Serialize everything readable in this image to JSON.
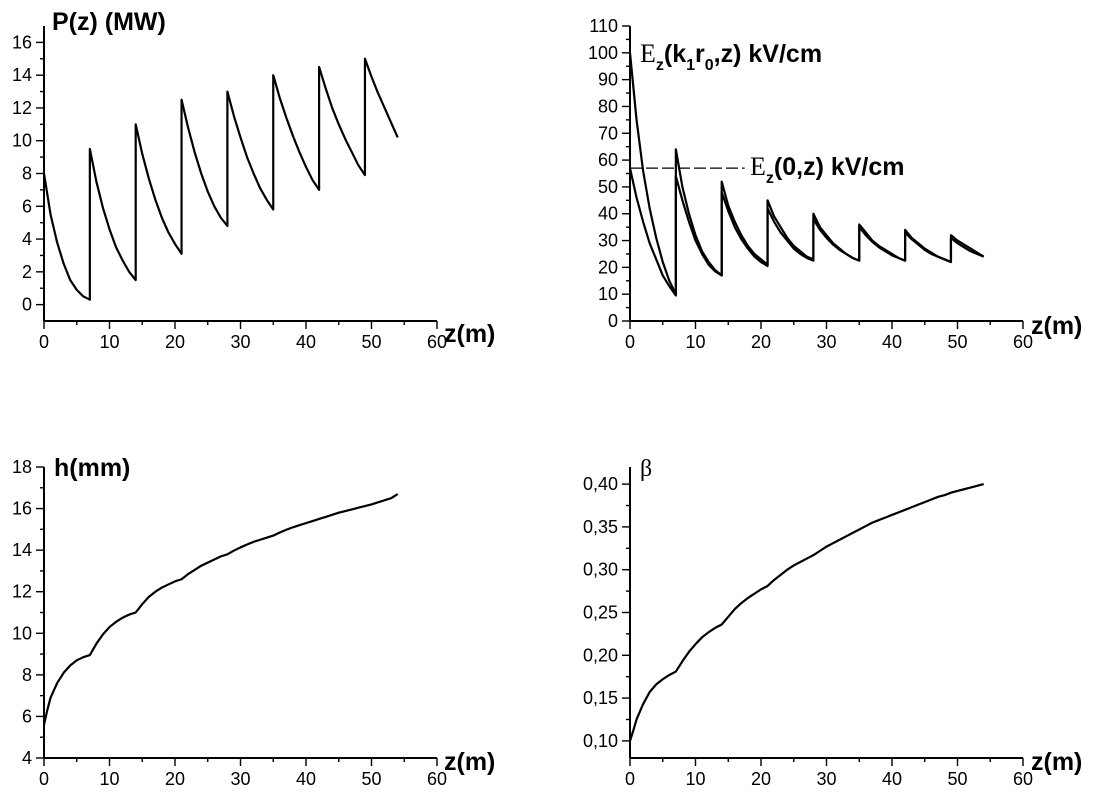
{
  "chart_data": [
    {
      "id": "p",
      "type": "line",
      "ylabel": "P(z) (MW)",
      "xlabel": "z(m)",
      "xlim": [
        0,
        60
      ],
      "ylim": [
        -1,
        17
      ],
      "xticks": [
        0,
        10,
        20,
        30,
        40,
        50,
        60
      ],
      "yticks": [
        0,
        2,
        4,
        6,
        8,
        10,
        12,
        14,
        16
      ],
      "grid": false,
      "series": [
        {
          "x": [
            0,
            1,
            2,
            3,
            4,
            5,
            6,
            7,
            7,
            8,
            9,
            10,
            11,
            12,
            13,
            14,
            14,
            15,
            16,
            17,
            18,
            19,
            20,
            21,
            21,
            22,
            23,
            24,
            25,
            26,
            27,
            28,
            28,
            29,
            30,
            31,
            32,
            33,
            34,
            35,
            35,
            36,
            37,
            38,
            39,
            40,
            41,
            42,
            42,
            43,
            44,
            45,
            46,
            47,
            48,
            49,
            49,
            50,
            51,
            52,
            53,
            54
          ],
          "values": [
            8.0,
            5.5,
            3.8,
            2.5,
            1.5,
            0.9,
            0.5,
            0.3,
            9.5,
            7.5,
            5.9,
            4.6,
            3.5,
            2.7,
            2.0,
            1.5,
            11.0,
            9.2,
            7.7,
            6.4,
            5.3,
            4.4,
            3.7,
            3.1,
            12.5,
            10.8,
            9.3,
            8.0,
            6.9,
            6.0,
            5.3,
            4.8,
            13.0,
            11.5,
            10.2,
            9.0,
            8.0,
            7.1,
            6.4,
            5.8,
            14.0,
            12.6,
            11.4,
            10.3,
            9.3,
            8.4,
            7.6,
            7.0,
            14.5,
            13.2,
            12.0,
            11.0,
            10.1,
            9.3,
            8.5,
            7.9,
            15.0,
            13.9,
            12.9,
            12.0,
            11.1,
            10.2
          ]
        }
      ]
    },
    {
      "id": "e",
      "type": "line",
      "xlabel": "z(m)",
      "xlim": [
        0,
        60
      ],
      "ylim": [
        0,
        110
      ],
      "xticks": [
        0,
        10,
        20,
        30,
        40,
        50,
        60
      ],
      "yticks": [
        0,
        10,
        20,
        30,
        40,
        50,
        60,
        70,
        80,
        90,
        100,
        110
      ],
      "grid": false,
      "annotations": [
        {
          "id": "ek1",
          "main": "E",
          "sub1": "z",
          "mid1": "(k",
          "sub2": "1",
          "mid2": "r",
          "sub3": "0",
          "tail": ",z) kV/cm"
        },
        {
          "id": "e0",
          "main": "E",
          "sub1": "z",
          "tail": "(0,z) kV/cm"
        }
      ],
      "series": [
        {
          "x": [
            0,
            1,
            2,
            3,
            4,
            5,
            6,
            7,
            7,
            8,
            9,
            10,
            11,
            12,
            13,
            14,
            14,
            15,
            16,
            17,
            18,
            19,
            20,
            21,
            21,
            22,
            23,
            24,
            25,
            26,
            27,
            28,
            28,
            29,
            30,
            31,
            32,
            33,
            34,
            35,
            35,
            36,
            37,
            38,
            39,
            40,
            41,
            42,
            42,
            43,
            44,
            45,
            46,
            47,
            48,
            49,
            49,
            50,
            51,
            52,
            53,
            54
          ],
          "values": [
            100,
            75,
            56,
            42,
            31,
            22,
            15,
            10,
            64,
            50,
            40,
            32,
            26,
            22,
            19,
            17,
            52,
            43,
            37,
            32,
            28,
            25,
            23,
            21,
            45,
            39,
            35,
            31,
            28,
            26,
            24,
            23,
            40,
            35,
            32,
            29,
            27,
            25,
            23.5,
            22.5,
            36,
            33,
            30,
            28,
            26.5,
            25,
            23.5,
            22.5,
            34,
            31,
            29,
            27,
            25.5,
            24,
            23,
            22,
            32,
            30,
            28.5,
            27,
            25.5,
            24
          ]
        },
        {
          "x": [
            0,
            1,
            2,
            3,
            4,
            5,
            6,
            7,
            7,
            8,
            9,
            10,
            11,
            12,
            13,
            14,
            14,
            15,
            16,
            17,
            18,
            19,
            20,
            21,
            21,
            22,
            23,
            24,
            25,
            26,
            27,
            28,
            28,
            29,
            30,
            31,
            32,
            33,
            34,
            35,
            35,
            36,
            37,
            38,
            39,
            40,
            41,
            42,
            42,
            43,
            44,
            45,
            46,
            47,
            48,
            49,
            49,
            50,
            51,
            52,
            53,
            54
          ],
          "values": [
            57,
            46,
            37,
            29,
            23,
            17,
            13,
            9.5,
            54,
            45,
            37,
            30,
            25,
            21,
            18.5,
            17,
            48,
            41,
            35,
            30.5,
            27,
            24,
            22,
            20.5,
            42,
            37,
            33,
            30,
            27,
            25,
            23.5,
            22.5,
            38,
            34,
            31,
            28.5,
            26.5,
            25,
            23.5,
            22.5,
            35,
            32,
            29.5,
            27.5,
            26,
            24.5,
            23.5,
            22.5,
            33,
            30.5,
            28.5,
            26.5,
            25,
            24,
            23,
            22,
            31,
            29,
            27.5,
            26,
            25,
            24
          ]
        },
        {
          "style": "dash",
          "x": [
            0,
            17.5
          ],
          "values": [
            57,
            57
          ]
        }
      ]
    },
    {
      "id": "h",
      "type": "line",
      "ylabel": "h(mm)",
      "xlabel": "z(m)",
      "xlim": [
        0,
        60
      ],
      "ylim": [
        4,
        18
      ],
      "xticks": [
        0,
        10,
        20,
        30,
        40,
        50,
        60
      ],
      "yticks": [
        4,
        6,
        8,
        10,
        12,
        14,
        16,
        18
      ],
      "grid": false,
      "series": [
        {
          "x": [
            0,
            0.5,
            1,
            2,
            3,
            4,
            5,
            6,
            7,
            8,
            9,
            10,
            11,
            12,
            13,
            14,
            15,
            16,
            17,
            18,
            19,
            20,
            21,
            22,
            23,
            24,
            25,
            26,
            27,
            28,
            29,
            30,
            31,
            32,
            33,
            34,
            35,
            36,
            37,
            38,
            39,
            40,
            41,
            42,
            43,
            44,
            45,
            46,
            47,
            48,
            49,
            50,
            51,
            52,
            53,
            54
          ],
          "values": [
            5.6,
            6.3,
            6.9,
            7.6,
            8.1,
            8.45,
            8.7,
            8.85,
            8.95,
            9.5,
            9.95,
            10.3,
            10.55,
            10.75,
            10.9,
            11.0,
            11.4,
            11.75,
            12.0,
            12.2,
            12.35,
            12.5,
            12.6,
            12.85,
            13.05,
            13.25,
            13.4,
            13.55,
            13.7,
            13.8,
            13.98,
            14.13,
            14.27,
            14.4,
            14.5,
            14.6,
            14.7,
            14.85,
            14.98,
            15.1,
            15.2,
            15.3,
            15.4,
            15.5,
            15.6,
            15.7,
            15.8,
            15.88,
            15.96,
            16.04,
            16.12,
            16.2,
            16.3,
            16.4,
            16.5,
            16.7
          ]
        }
      ]
    },
    {
      "id": "b",
      "type": "line",
      "ylabel": "β",
      "xlabel": "z(m)",
      "xlim": [
        0,
        60
      ],
      "ylim": [
        0.1,
        0.4
      ],
      "ylim_display": [
        0.1,
        0.4
      ],
      "xticks": [
        0,
        10,
        20,
        30,
        40,
        50,
        60
      ],
      "yticks": [
        0.1,
        0.15,
        0.2,
        0.25,
        0.3,
        0.35,
        0.4
      ],
      "yticklabels": [
        "0,10",
        "0,15",
        "0,20",
        "0,25",
        "0,30",
        "0,35",
        "0,40"
      ],
      "grid": false,
      "series": [
        {
          "x": [
            0,
            0.5,
            1,
            2,
            3,
            4,
            5,
            6,
            7,
            8,
            9,
            10,
            11,
            12,
            13,
            14,
            15,
            16,
            17,
            18,
            19,
            20,
            21,
            22,
            23,
            24,
            25,
            26,
            27,
            28,
            29,
            30,
            31,
            32,
            33,
            34,
            35,
            36,
            37,
            38,
            39,
            40,
            41,
            42,
            43,
            44,
            45,
            46,
            47,
            48,
            49,
            50,
            51,
            52,
            53,
            54
          ],
          "values": [
            0.1,
            0.112,
            0.125,
            0.143,
            0.157,
            0.166,
            0.172,
            0.177,
            0.181,
            0.193,
            0.204,
            0.213,
            0.221,
            0.227,
            0.232,
            0.236,
            0.245,
            0.254,
            0.261,
            0.267,
            0.272,
            0.277,
            0.281,
            0.288,
            0.294,
            0.3,
            0.305,
            0.309,
            0.313,
            0.317,
            0.322,
            0.327,
            0.331,
            0.335,
            0.339,
            0.343,
            0.347,
            0.351,
            0.355,
            0.358,
            0.361,
            0.364,
            0.367,
            0.37,
            0.373,
            0.376,
            0.379,
            0.382,
            0.385,
            0.387,
            0.39,
            0.392,
            0.394,
            0.396,
            0.398,
            0.4
          ]
        }
      ]
    }
  ]
}
